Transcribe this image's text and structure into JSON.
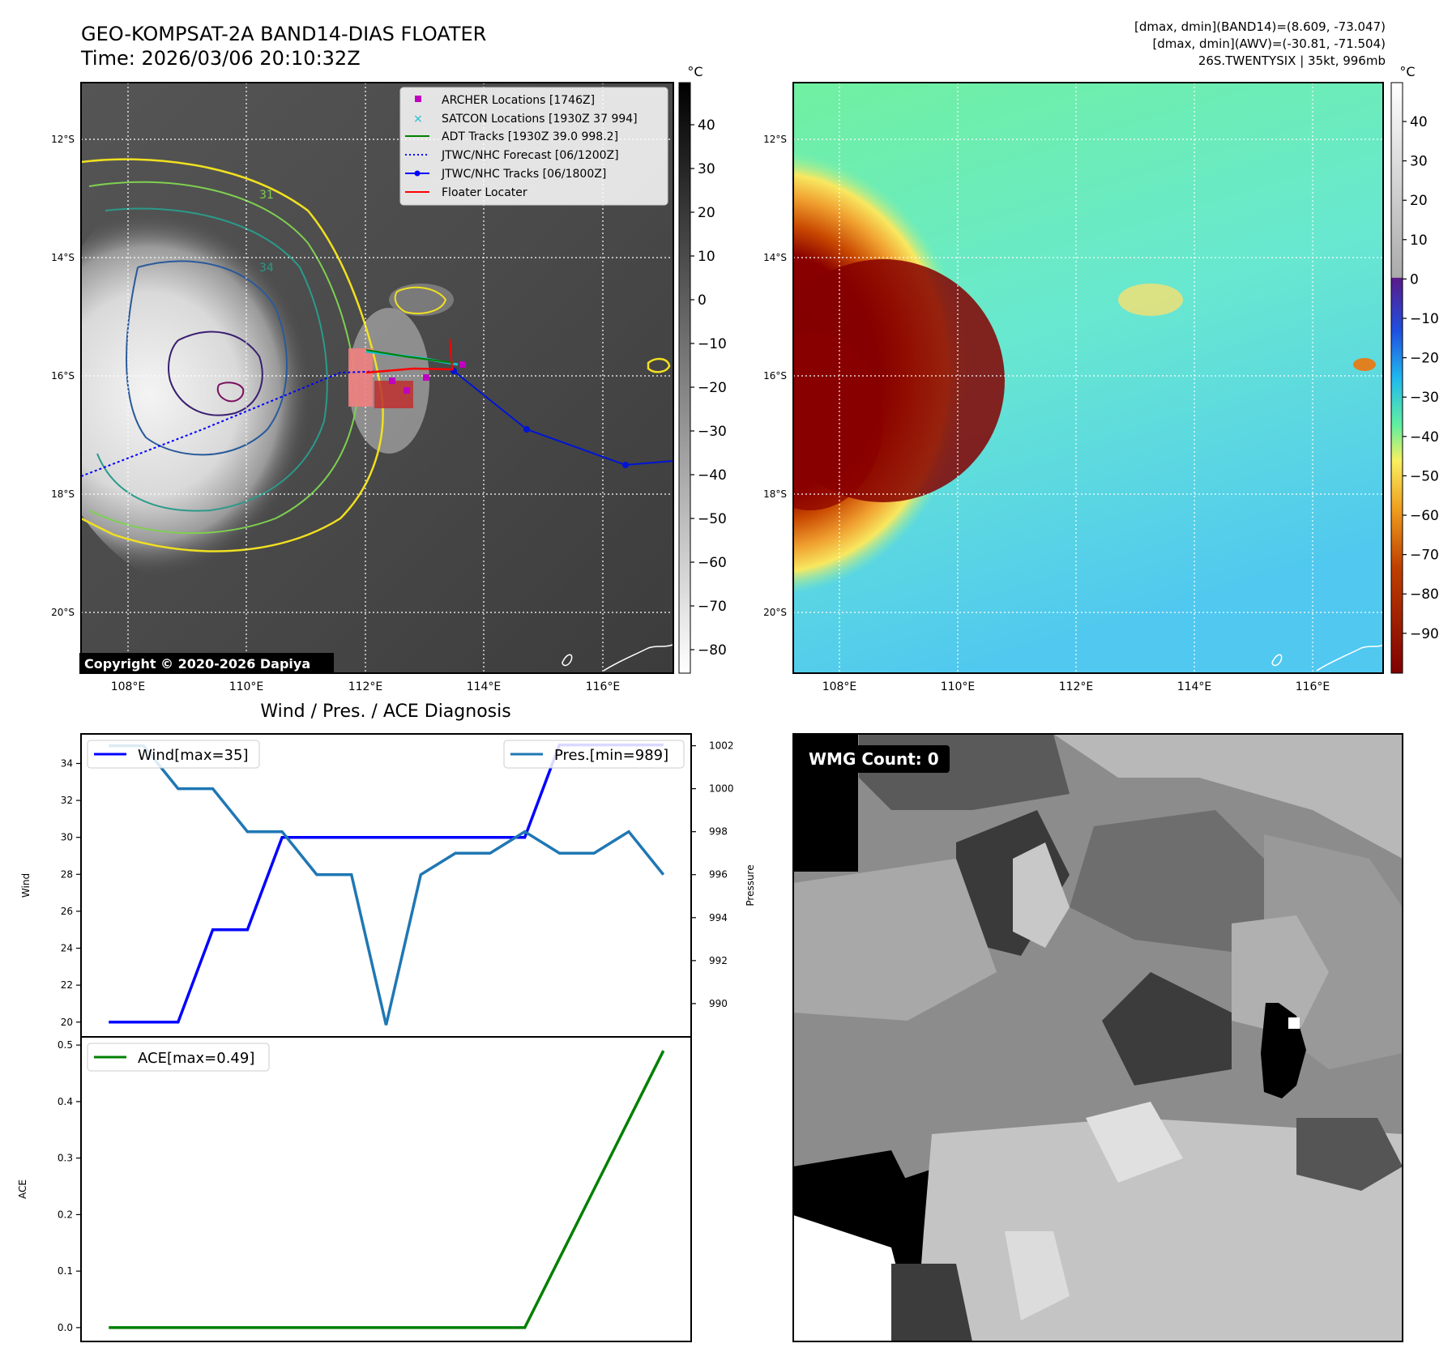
{
  "header": {
    "title_line1": "GEO-KOMPSAT-2A BAND14-DIAS FLOATER",
    "title_line2": "Time: 2026/03/06 20:10:32Z",
    "stats_line1": "[dmax, dmin](BAND14)=(8.609, -73.047)",
    "stats_line2": "[dmax, dmin](AWV)=(-30.81, -71.504)",
    "stats_line3": "26S.TWENTYSIX | 35kt, 996mb"
  },
  "map_ir": {
    "lat_labels": [
      "12°S",
      "14°S",
      "16°S",
      "18°S",
      "20°S"
    ],
    "lon_labels": [
      "108°E",
      "110°E",
      "112°E",
      "114°E",
      "116°E"
    ],
    "copyright": "Copyright © 2020-2026 Dapiya",
    "colorbar_unit": "°C",
    "colorbar_ticks": [
      "40",
      "30",
      "20",
      "10",
      "0",
      "−10",
      "−20",
      "−30",
      "−40",
      "−50",
      "−60",
      "−70",
      "−80"
    ],
    "legend": [
      {
        "label": "ARCHER Locations [1746Z]",
        "color": "#c000c0",
        "marker": "square"
      },
      {
        "label": "SATCON Locations [1930Z 37 994]",
        "color": "#17becf",
        "marker": "x"
      },
      {
        "label": "ADT Tracks [1930Z 39.0 998.2]",
        "color": "#008000",
        "marker": "line"
      },
      {
        "label": "JTWC/NHC Forecast [06/1200Z]",
        "color": "#0000ff",
        "marker": "dotted"
      },
      {
        "label": "JTWC/NHC Tracks [06/1800Z]",
        "color": "#0000ff",
        "marker": "line-dot"
      },
      {
        "label": "Floater Locater",
        "color": "#ff0000",
        "marker": "line"
      }
    ],
    "contour_labels": [
      "31",
      "34"
    ],
    "track_colors": {
      "forecast": "#0000ff",
      "best_track": "#0014d6",
      "adt": "#008000",
      "satcon": "#17becf",
      "floater": "#ff0000",
      "archer": "#c000c0"
    }
  },
  "map_color": {
    "lat_labels": [
      "12°S",
      "14°S",
      "16°S",
      "18°S",
      "20°S"
    ],
    "lon_labels": [
      "108°E",
      "110°E",
      "112°E",
      "114°E",
      "116°E"
    ],
    "colorbar_unit": "°C",
    "colorbar_ticks": [
      "40",
      "30",
      "20",
      "10",
      "0",
      "−10",
      "−20",
      "−30",
      "−40",
      "−50",
      "−60",
      "−70",
      "−80",
      "−90"
    ]
  },
  "chart_data": [
    {
      "type": "line",
      "title": "Wind / Pres. / ACE Diagnosis",
      "x": [
        0,
        1,
        2,
        3,
        4,
        5,
        6,
        7,
        8,
        9,
        10,
        11,
        12,
        13,
        14,
        15,
        16
      ],
      "series": [
        {
          "name": "Wind[max=35]",
          "axis": "left",
          "color": "#0000ff",
          "values": [
            20,
            20,
            20,
            25,
            25,
            30,
            30,
            30,
            30,
            30,
            30,
            30,
            30,
            35,
            35,
            35,
            35
          ]
        },
        {
          "name": "Pres.[min=989]",
          "axis": "right",
          "color": "#1f77b4",
          "values": [
            1002,
            1002,
            1000,
            1000,
            998,
            998,
            996,
            996,
            989,
            996,
            997,
            997,
            998,
            997,
            997,
            998,
            996
          ]
        }
      ],
      "ylabel": "Wind",
      "ylim": [
        19.2,
        35.6
      ],
      "yticks": [
        20,
        22,
        24,
        26,
        28,
        30,
        32,
        34
      ],
      "ylabel_right": "Pressure",
      "ylim_right": [
        988.45,
        1002.55
      ],
      "yticks_right": [
        990,
        992,
        994,
        996,
        998,
        1000,
        1002
      ],
      "legend": [
        "top-left",
        "top-right"
      ]
    },
    {
      "type": "line",
      "x": [
        0,
        1,
        2,
        3,
        4,
        5,
        6,
        7,
        8,
        9,
        10,
        11,
        12,
        13,
        14,
        15,
        16
      ],
      "series": [
        {
          "name": "ACE[max=0.49]",
          "color": "#008000",
          "values": [
            0,
            0,
            0,
            0,
            0,
            0,
            0,
            0,
            0,
            0,
            0,
            0,
            0.0,
            0.1225,
            0.245,
            0.3675,
            0.49
          ]
        }
      ],
      "ylabel": "ACE",
      "ylim": [
        -0.0245,
        0.5145
      ],
      "yticks": [
        "0.0",
        "0.1",
        "0.2",
        "0.3",
        "0.4",
        "0.5"
      ],
      "legend": "top-left"
    }
  ],
  "wmg_panel": {
    "label": "WMG Count: 0"
  }
}
